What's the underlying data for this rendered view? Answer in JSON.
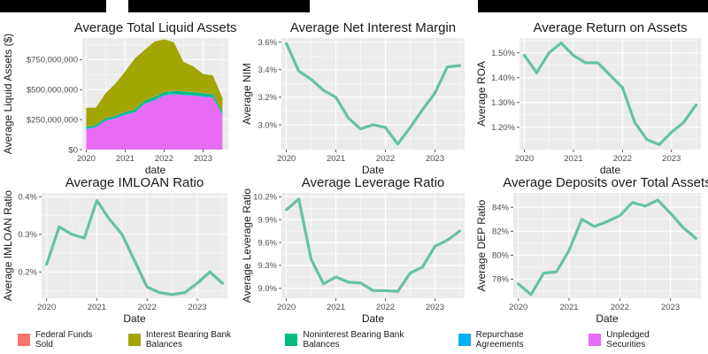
{
  "colors": {
    "panel_bg": "#ebebeb",
    "grid": "#ffffff",
    "line": "#66c2a5",
    "federal_funds_sold": "#f8766d",
    "interest_bearing": "#a3a500",
    "noninterest_bearing": "#00bf7d",
    "repurchase": "#00b0f6",
    "unpledged": "#e76bf3"
  },
  "legend": {
    "items": [
      {
        "label": "Federal Funds Sold",
        "color": "#f8766d"
      },
      {
        "label": "Interest Bearing Bank Balances",
        "color": "#a3a500"
      },
      {
        "label": "Noninterest Bearing Bank Balances",
        "color": "#00bf7d"
      },
      {
        "label": "Repurchase Agreements",
        "color": "#00b0f6"
      },
      {
        "label": "Unpledged Securities",
        "color": "#e76bf3"
      }
    ]
  },
  "chart_data": [
    {
      "type": "area",
      "title": "Average Total Liquid Assets",
      "xlabel": "date",
      "ylabel": "Average Liquid Assets ($)",
      "x": [
        2020,
        2020.25,
        2020.5,
        2020.75,
        2021,
        2021.25,
        2021.5,
        2021.75,
        2022,
        2022.25,
        2022.5,
        2022.75,
        2023,
        2023.25,
        2023.5
      ],
      "xlim": [
        2019.9,
        2023.65
      ],
      "ylim": [
        0,
        930000000
      ],
      "xticks": [
        {
          "v": 2020,
          "label": "2020"
        },
        {
          "v": 2021,
          "label": "2021"
        },
        {
          "v": 2022,
          "label": "2022"
        },
        {
          "v": 2023,
          "label": "2023"
        }
      ],
      "yticks": [
        {
          "v": 0,
          "label": "$0"
        },
        {
          "v": 250000000,
          "label": "$250,000,000"
        },
        {
          "v": 500000000,
          "label": "$500,000,000"
        },
        {
          "v": 750000000,
          "label": "$750,000,000"
        }
      ],
      "stack_order": [
        "Unpledged Securities",
        "Repurchase Agreements",
        "Noninterest Bearing Bank Balances",
        "Federal Funds Sold",
        "Interest Bearing Bank Balances"
      ],
      "series": [
        {
          "name": "Unpledged Securities",
          "color": "#e76bf3",
          "values": [
            170000000,
            185000000,
            240000000,
            260000000,
            290000000,
            310000000,
            380000000,
            410000000,
            450000000,
            460000000,
            455000000,
            450000000,
            440000000,
            435000000,
            290000000
          ]
        },
        {
          "name": "Repurchase Agreements",
          "color": "#00b0f6",
          "values": [
            5000000,
            5000000,
            5000000,
            5000000,
            5000000,
            5000000,
            5000000,
            5000000,
            5000000,
            5000000,
            5000000,
            5000000,
            5000000,
            5000000,
            5000000
          ]
        },
        {
          "name": "Noninterest Bearing Bank Balances",
          "color": "#00bf7d",
          "values": [
            15000000,
            15000000,
            18000000,
            18000000,
            20000000,
            20000000,
            22000000,
            25000000,
            25000000,
            25000000,
            25000000,
            25000000,
            25000000,
            25000000,
            20000000
          ]
        },
        {
          "name": "Federal Funds Sold",
          "color": "#f8766d",
          "values": [
            3000000,
            3000000,
            3000000,
            3000000,
            3000000,
            3000000,
            3000000,
            3000000,
            3000000,
            3000000,
            3000000,
            3000000,
            3000000,
            3000000,
            3000000
          ]
        },
        {
          "name": "Interest Bearing Bank Balances",
          "color": "#a3a500",
          "values": [
            155000000,
            142000000,
            204000000,
            264000000,
            332000000,
            422000000,
            420000000,
            457000000,
            437000000,
            402000000,
            242000000,
            212000000,
            157000000,
            152000000,
            112000000
          ]
        }
      ]
    },
    {
      "type": "line",
      "title": "Average Net Interest Margin",
      "xlabel": "Date",
      "ylabel": "Average NIM",
      "x": [
        2020,
        2020.25,
        2020.5,
        2020.75,
        2021,
        2021.25,
        2021.5,
        2021.75,
        2022,
        2022.25,
        2022.5,
        2022.75,
        2023,
        2023.25,
        2023.5
      ],
      "xlim": [
        2019.9,
        2023.6
      ],
      "ylim": [
        2.82,
        3.63
      ],
      "xticks": [
        {
          "v": 2020,
          "label": "2020"
        },
        {
          "v": 2021,
          "label": "2021"
        },
        {
          "v": 2022,
          "label": "2022"
        },
        {
          "v": 2023,
          "label": "2023"
        }
      ],
      "yticks": [
        {
          "v": 3.0,
          "label": "3.0%"
        },
        {
          "v": 3.2,
          "label": "3.2%"
        },
        {
          "v": 3.4,
          "label": "3.4%"
        },
        {
          "v": 3.6,
          "label": "3.6%"
        }
      ],
      "series": [
        {
          "values": [
            3.59,
            3.39,
            3.33,
            3.25,
            3.2,
            3.05,
            2.97,
            3.0,
            2.98,
            2.86,
            2.98,
            3.11,
            3.23,
            3.42,
            3.43
          ]
        }
      ]
    },
    {
      "type": "line",
      "title": "Average Return on Assets",
      "xlabel": "date",
      "ylabel": "Average ROA",
      "x": [
        2020,
        2020.25,
        2020.5,
        2020.75,
        2021,
        2021.25,
        2021.5,
        2021.75,
        2022,
        2022.25,
        2022.5,
        2022.75,
        2023,
        2023.25,
        2023.5
      ],
      "xlim": [
        2019.9,
        2023.6
      ],
      "ylim": [
        1.11,
        1.56
      ],
      "xticks": [
        {
          "v": 2020,
          "label": "2020"
        },
        {
          "v": 2021,
          "label": "2021"
        },
        {
          "v": 2022,
          "label": "2022"
        },
        {
          "v": 2023,
          "label": "2023"
        }
      ],
      "yticks": [
        {
          "v": 1.2,
          "label": "1.20%"
        },
        {
          "v": 1.3,
          "label": "1.30%"
        },
        {
          "v": 1.4,
          "label": "1.40%"
        },
        {
          "v": 1.5,
          "label": "1.50%"
        }
      ],
      "series": [
        {
          "values": [
            1.49,
            1.42,
            1.5,
            1.54,
            1.49,
            1.46,
            1.46,
            1.41,
            1.36,
            1.22,
            1.15,
            1.13,
            1.18,
            1.22,
            1.29
          ]
        }
      ]
    },
    {
      "type": "line",
      "title": "Average IMLOAN Ratio",
      "xlabel": "Date",
      "ylabel": "Average IMLOAN Ratio",
      "x": [
        2020,
        2020.25,
        2020.5,
        2020.75,
        2021,
        2021.25,
        2021.5,
        2021.75,
        2022,
        2022.25,
        2022.5,
        2022.75,
        2023,
        2023.25,
        2023.5
      ],
      "xlim": [
        2019.9,
        2023.6
      ],
      "ylim": [
        0.13,
        0.41
      ],
      "xticks": [
        {
          "v": 2020,
          "label": "2020"
        },
        {
          "v": 2021,
          "label": "2021"
        },
        {
          "v": 2022,
          "label": "2022"
        },
        {
          "v": 2023,
          "label": "2023"
        }
      ],
      "yticks": [
        {
          "v": 0.2,
          "label": "0.2%"
        },
        {
          "v": 0.3,
          "label": "0.3%"
        },
        {
          "v": 0.4,
          "label": "0.4%"
        }
      ],
      "series": [
        {
          "values": [
            0.22,
            0.32,
            0.3,
            0.29,
            0.39,
            0.34,
            0.3,
            0.23,
            0.16,
            0.145,
            0.14,
            0.145,
            0.17,
            0.2,
            0.17
          ]
        }
      ]
    },
    {
      "type": "line",
      "title": "Average Leverage Ratio",
      "xlabel": "Date",
      "ylabel": "Average Leverage Ratio",
      "x": [
        2020,
        2020.25,
        2020.5,
        2020.75,
        2021,
        2021.25,
        2021.5,
        2021.75,
        2022,
        2022.25,
        2022.5,
        2022.75,
        2023,
        2023.25,
        2023.5
      ],
      "xlim": [
        2019.9,
        2023.6
      ],
      "ylim": [
        8.87,
        10.25
      ],
      "xticks": [
        {
          "v": 2020,
          "label": "2020"
        },
        {
          "v": 2021,
          "label": "2021"
        },
        {
          "v": 2022,
          "label": "2022"
        },
        {
          "v": 2023,
          "label": "2023"
        }
      ],
      "yticks": [
        {
          "v": 9.0,
          "label": "9.0%"
        },
        {
          "v": 9.3,
          "label": "9.3%"
        },
        {
          "v": 9.6,
          "label": "9.6%"
        },
        {
          "v": 9.9,
          "label": "9.9%"
        },
        {
          "v": 10.2,
          "label": "10.2%"
        }
      ],
      "series": [
        {
          "values": [
            10.03,
            10.17,
            9.38,
            9.06,
            9.15,
            9.08,
            9.07,
            8.97,
            8.97,
            8.96,
            9.2,
            9.28,
            9.55,
            9.63,
            9.75
          ]
        }
      ]
    },
    {
      "type": "line",
      "title": "Average Deposits over Total Assets",
      "xlabel": "Date",
      "ylabel": "Average DEP Ratio",
      "x": [
        2020,
        2020.25,
        2020.5,
        2020.75,
        2021,
        2021.25,
        2021.5,
        2021.75,
        2022,
        2022.25,
        2022.5,
        2022.75,
        2023,
        2023.25,
        2023.5
      ],
      "xlim": [
        2019.9,
        2023.6
      ],
      "ylim": [
        76.4,
        85.2
      ],
      "xticks": [
        {
          "v": 2020,
          "label": "2020"
        },
        {
          "v": 2021,
          "label": "2021"
        },
        {
          "v": 2022,
          "label": "2022"
        },
        {
          "v": 2023,
          "label": "2023"
        }
      ],
      "yticks": [
        {
          "v": 78,
          "label": "78%"
        },
        {
          "v": 80,
          "label": "80%"
        },
        {
          "v": 82,
          "label": "82%"
        },
        {
          "v": 84,
          "label": "84%"
        }
      ],
      "series": [
        {
          "values": [
            77.6,
            76.7,
            78.5,
            78.6,
            80.4,
            83.0,
            82.4,
            82.8,
            83.3,
            84.4,
            84.1,
            84.6,
            83.5,
            82.3,
            81.4
          ]
        }
      ]
    }
  ]
}
